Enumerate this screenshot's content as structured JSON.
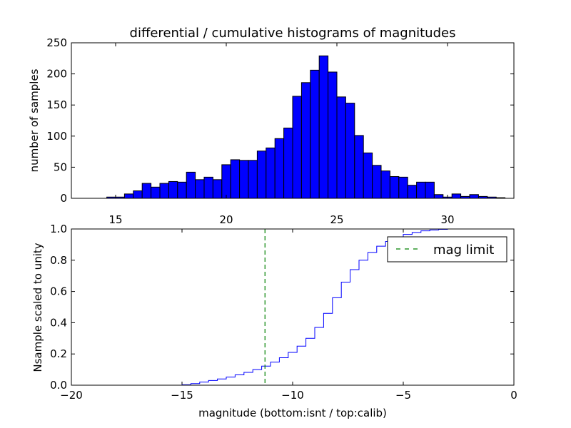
{
  "chart_data": [
    {
      "type": "bar",
      "title": "differential / cumulative histograms of magnitudes",
      "xlabel": "",
      "ylabel": "number of samples",
      "xlim": [
        13.0,
        33.0
      ],
      "ylim": [
        0,
        250
      ],
      "xticks": [
        15,
        20,
        25,
        30
      ],
      "yticks": [
        0,
        50,
        100,
        150,
        200,
        250
      ],
      "bar_color": "#0000ff",
      "bin_width": 0.4,
      "bins_start": [
        14.6,
        15.0,
        15.4,
        15.8,
        16.2,
        16.6,
        17.0,
        17.4,
        17.8,
        18.2,
        18.6,
        19.0,
        19.4,
        19.8,
        20.2,
        20.6,
        21.0,
        21.4,
        21.8,
        22.2,
        22.6,
        23.0,
        23.4,
        23.8,
        24.2,
        24.6,
        25.0,
        25.4,
        25.8,
        26.2,
        26.6,
        27.0,
        27.4,
        27.8,
        28.2,
        28.6,
        29.0,
        29.4,
        29.8,
        30.2,
        30.6,
        31.0,
        31.4,
        31.8,
        32.2
      ],
      "values": [
        2,
        2,
        7,
        12,
        24,
        18,
        24,
        27,
        26,
        42,
        30,
        34,
        30,
        54,
        62,
        61,
        61,
        76,
        81,
        96,
        113,
        164,
        186,
        206,
        229,
        203,
        163,
        153,
        101,
        73,
        53,
        44,
        35,
        34,
        21,
        26,
        26,
        6,
        2,
        7,
        3,
        6,
        3,
        2,
        1
      ]
    },
    {
      "type": "line",
      "step": true,
      "xlabel": "magnitude (bottom:isnt / top:calib)",
      "ylabel": "Nsample scaled to unity",
      "xlim": [
        -20,
        0
      ],
      "ylim": [
        0.0,
        1.0
      ],
      "xticks": [
        -20,
        -15,
        -10,
        -5,
        0
      ],
      "xticklabels": [
        "−20",
        "−15",
        "−10",
        "−5",
        "0"
      ],
      "yticks": [
        0.0,
        0.2,
        0.4,
        0.6,
        0.8,
        1.0
      ],
      "yticklabels": [
        "0.0",
        "0.2",
        "0.4",
        "0.6",
        "0.8",
        "1.0"
      ],
      "series": [
        {
          "name": "cumulative",
          "color": "#0000ff",
          "x": [
            -20.0,
            -15.0,
            -14.6,
            -14.2,
            -13.8,
            -13.4,
            -13.0,
            -12.6,
            -12.2,
            -11.8,
            -11.4,
            -11.0,
            -10.6,
            -10.2,
            -9.8,
            -9.4,
            -9.0,
            -8.6,
            -8.2,
            -7.8,
            -7.4,
            -7.0,
            -6.6,
            -6.2,
            -5.8,
            -5.4,
            -5.0,
            -4.6,
            -4.2,
            -3.8,
            -3.4,
            -3.0,
            -0.05
          ],
          "y": [
            0.0,
            0.003,
            0.01,
            0.02,
            0.03,
            0.04,
            0.052,
            0.066,
            0.082,
            0.1,
            0.122,
            0.148,
            0.176,
            0.21,
            0.25,
            0.3,
            0.37,
            0.46,
            0.56,
            0.66,
            0.74,
            0.8,
            0.85,
            0.89,
            0.92,
            0.945,
            0.965,
            0.978,
            0.988,
            0.994,
            0.998,
            1.0,
            1.0
          ]
        }
      ],
      "vline": {
        "x": -11.25,
        "color": "#008000",
        "style": "dashed"
      },
      "legend": {
        "label": "mag limit",
        "placement": "top-right"
      }
    }
  ]
}
